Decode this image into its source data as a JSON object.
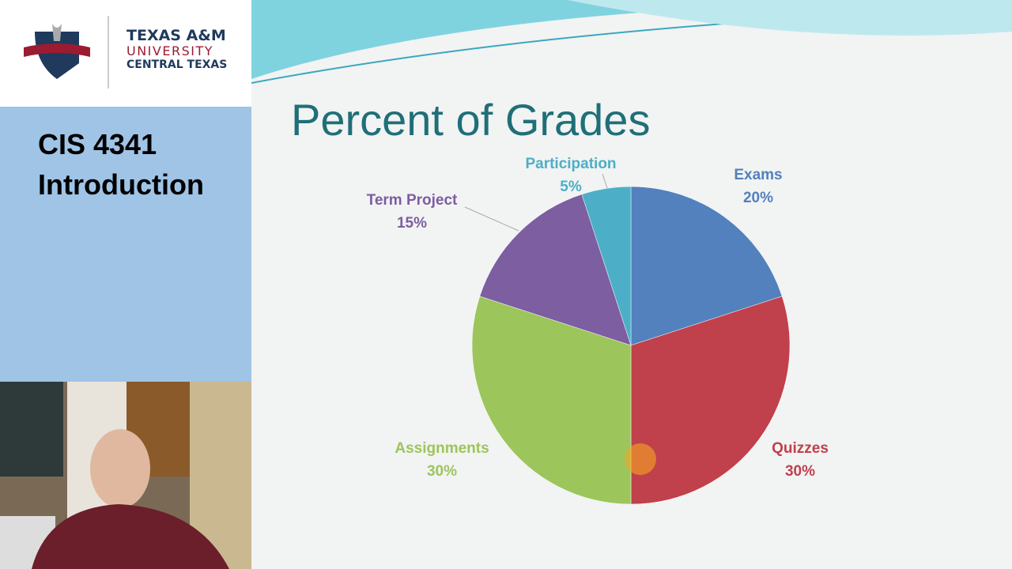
{
  "logo": {
    "line1": "TEXAS A&M",
    "line2": "UNIVERSITY",
    "line3": "CENTRAL TEXAS"
  },
  "sidebar": {
    "course": "CIS 4341",
    "topic": "Introduction"
  },
  "chart_data": {
    "type": "pie",
    "title": "Percent of Grades",
    "categories": [
      "Exams",
      "Quizzes",
      "Assignments",
      "Term Project",
      "Participation"
    ],
    "values": [
      20,
      30,
      30,
      15,
      5
    ],
    "value_labels": [
      "20%",
      "30%",
      "30%",
      "15%",
      "5%"
    ],
    "colors": [
      "#5281bd",
      "#c0404b",
      "#9cc55b",
      "#7c5ea1",
      "#4cafc7"
    ]
  }
}
